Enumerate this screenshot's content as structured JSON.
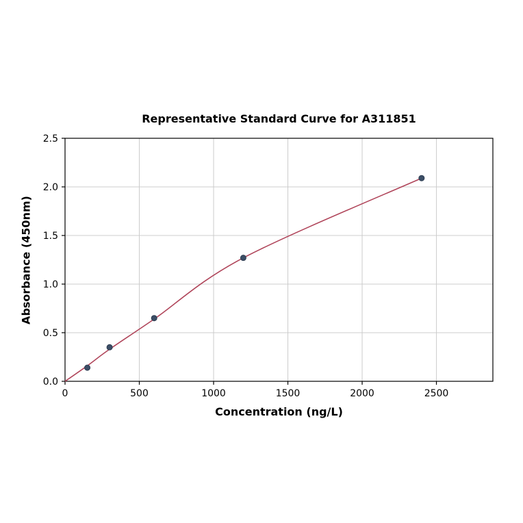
{
  "chart_data": {
    "type": "scatter",
    "title": "Representative Standard Curve for A311851",
    "xlabel": "Concentration (ng/L)",
    "ylabel": "Absorbance (450nm)",
    "xlim": [
      0,
      2880
    ],
    "ylim": [
      0,
      2.5
    ],
    "grid": true,
    "legend": null,
    "xticks": {
      "values": [
        0,
        500,
        1000,
        1500,
        2000,
        2500
      ],
      "labels": [
        "0",
        "500",
        "1000",
        "1500",
        "2000",
        "2500"
      ]
    },
    "yticks": {
      "values": [
        0,
        0.5,
        1.0,
        1.5,
        2.0,
        2.5
      ],
      "labels": [
        "0.0",
        "0.5",
        "1.0",
        "1.5",
        "2.0",
        "2.5"
      ]
    },
    "points": {
      "x": [
        150,
        300,
        600,
        1200,
        2400
      ],
      "y": [
        0.14,
        0.35,
        0.65,
        1.27,
        2.09
      ]
    },
    "curve": {
      "x": [
        0,
        150,
        300,
        600,
        1200,
        2400
      ],
      "y": [
        0.0,
        0.16,
        0.33,
        0.64,
        1.27,
        2.09
      ]
    },
    "colors": {
      "curve": "#b0455a",
      "point_fill": "#3c4e66",
      "point_edge": "#2e3d52",
      "grid": "#cccccc",
      "axis": "#000000"
    }
  }
}
